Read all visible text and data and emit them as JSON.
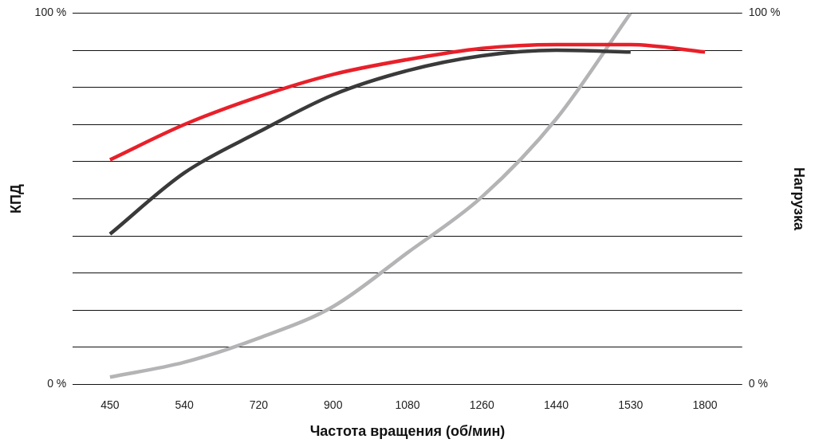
{
  "chart_data": {
    "type": "line",
    "xlabel": "Частота вращения (об/мин)",
    "ylabel": "КПД",
    "y2label": "Нагрузка",
    "categories": [
      "450",
      "540",
      "720",
      "900",
      "1080",
      "1260",
      "1440",
      "1530",
      "1800"
    ],
    "series": [
      {
        "color": "#e8202a",
        "values": [
          60.5,
          70,
          77.5,
          83.5,
          87.5,
          90.5,
          91.5,
          91.5,
          89.5
        ]
      },
      {
        "color": "#3a3a3a",
        "values": [
          40.5,
          57,
          68,
          78,
          84.5,
          88.5,
          90,
          89.5,
          null
        ]
      },
      {
        "color": "#b4b4b6",
        "axis": "y2",
        "values": [
          2,
          6,
          12.5,
          21,
          35.5,
          50.5,
          71.5,
          100,
          null
        ]
      }
    ],
    "ylim": [
      0,
      100
    ],
    "yticks": [
      {
        "value": 0,
        "label": "0 %"
      },
      {
        "value": 10,
        "label": null
      },
      {
        "value": 20,
        "label": null
      },
      {
        "value": 30,
        "label": null
      },
      {
        "value": 40,
        "label": null
      },
      {
        "value": 50,
        "label": null
      },
      {
        "value": 60,
        "label": null
      },
      {
        "value": 70,
        "label": null
      },
      {
        "value": 80,
        "label": null
      },
      {
        "value": 90,
        "label": null
      },
      {
        "value": 100,
        "label": "100 %"
      }
    ],
    "y2lim": [
      0,
      100
    ],
    "y2ticks": [
      {
        "value": 0,
        "label": "0 %"
      },
      {
        "value": 100,
        "label": "100 %"
      }
    ],
    "grid": "y",
    "legend": false,
    "marker": "none",
    "line_style": "solid"
  }
}
